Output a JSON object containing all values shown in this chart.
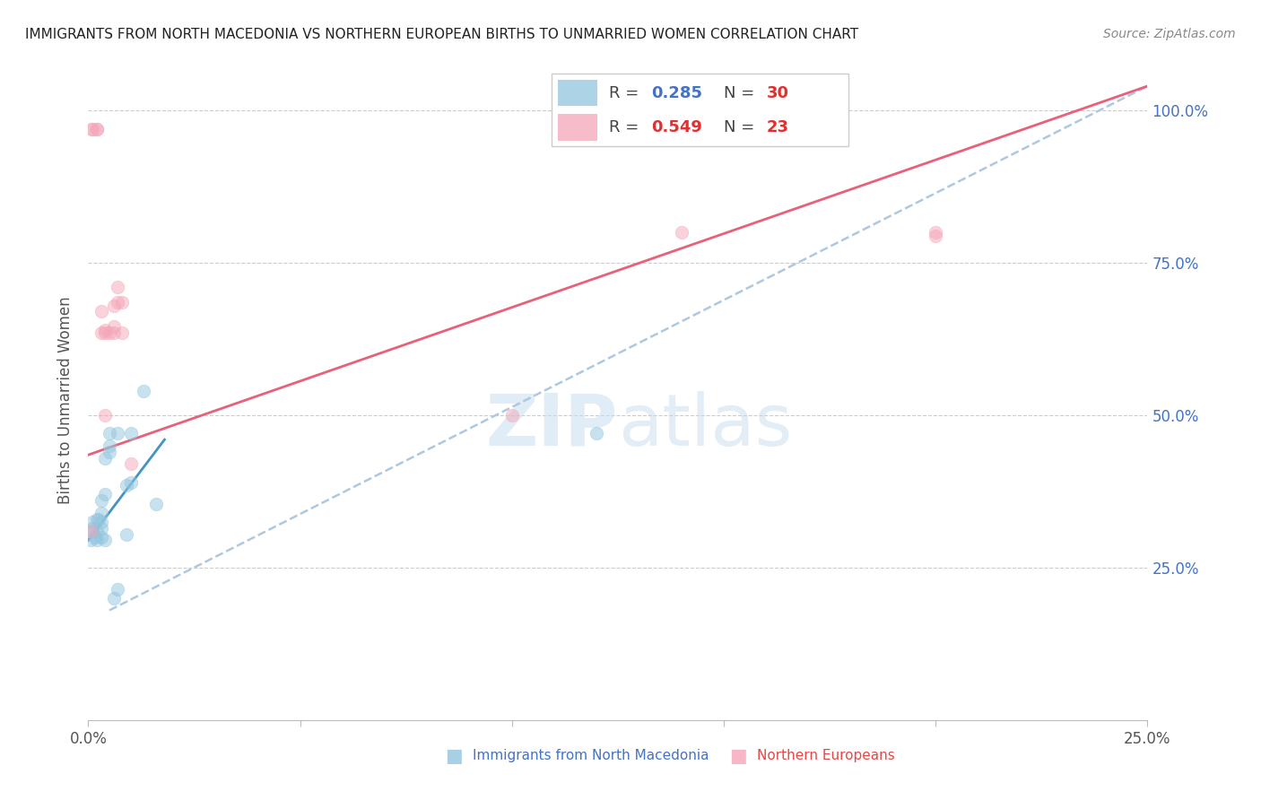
{
  "title": "IMMIGRANTS FROM NORTH MACEDONIA VS NORTHERN EUROPEAN BIRTHS TO UNMARRIED WOMEN CORRELATION CHART",
  "source": "Source: ZipAtlas.com",
  "xlabel_blue": "Immigrants from North Macedonia",
  "xlabel_pink": "Northern Europeans",
  "ylabel": "Births to Unmarried Women",
  "xlim": [
    0.0,
    0.25
  ],
  "ylim": [
    -0.05,
    1.1
  ],
  "plot_ylim": [
    0.0,
    1.05
  ],
  "x_ticks": [
    0.0,
    0.05,
    0.1,
    0.15,
    0.2,
    0.25
  ],
  "x_tick_labels": [
    "0.0%",
    "",
    "",
    "",
    "",
    "25.0%"
  ],
  "y_ticks": [
    0.25,
    0.5,
    0.75,
    1.0
  ],
  "y_tick_labels": [
    "25.0%",
    "50.0%",
    "75.0%",
    "100.0%"
  ],
  "legend_blue_r": "0.285",
  "legend_blue_n": "30",
  "legend_pink_r": "0.549",
  "legend_pink_n": "23",
  "blue_color": "#92c5de",
  "pink_color": "#f4a6b8",
  "blue_line_color": "#4393c3",
  "pink_line_color": "#e8607a",
  "dashed_line_color": "#adc8e0",
  "watermark_zip": "ZIP",
  "watermark_atlas": "atlas",
  "blue_x": [
    0.0005,
    0.0008,
    0.001,
    0.001,
    0.0015,
    0.002,
    0.002,
    0.002,
    0.0025,
    0.003,
    0.003,
    0.003,
    0.003,
    0.003,
    0.004,
    0.004,
    0.004,
    0.005,
    0.005,
    0.005,
    0.006,
    0.007,
    0.007,
    0.009,
    0.009,
    0.01,
    0.01,
    0.013,
    0.016,
    0.12
  ],
  "blue_y": [
    0.295,
    0.31,
    0.315,
    0.325,
    0.3,
    0.295,
    0.31,
    0.33,
    0.33,
    0.3,
    0.315,
    0.325,
    0.34,
    0.36,
    0.295,
    0.37,
    0.43,
    0.44,
    0.45,
    0.47,
    0.2,
    0.215,
    0.47,
    0.305,
    0.385,
    0.39,
    0.47,
    0.54,
    0.355,
    0.47
  ],
  "pink_x": [
    0.0005,
    0.0008,
    0.001,
    0.002,
    0.002,
    0.003,
    0.003,
    0.004,
    0.004,
    0.004,
    0.005,
    0.006,
    0.006,
    0.006,
    0.007,
    0.007,
    0.008,
    0.008,
    0.01,
    0.1,
    0.14,
    0.2,
    0.2
  ],
  "pink_y": [
    0.31,
    0.97,
    0.97,
    0.97,
    0.97,
    0.635,
    0.67,
    0.5,
    0.635,
    0.64,
    0.635,
    0.635,
    0.645,
    0.68,
    0.685,
    0.71,
    0.635,
    0.685,
    0.42,
    0.5,
    0.8,
    0.795,
    0.8
  ],
  "blue_line_x": [
    0.0,
    0.018
  ],
  "blue_line_y": [
    0.295,
    0.46
  ],
  "pink_line_x": [
    0.0,
    0.25
  ],
  "pink_line_y": [
    0.435,
    1.04
  ],
  "dashed_line_x": [
    0.005,
    0.25
  ],
  "dashed_line_y": [
    0.18,
    1.04
  ],
  "marker_size": 110,
  "alpha": 0.5
}
